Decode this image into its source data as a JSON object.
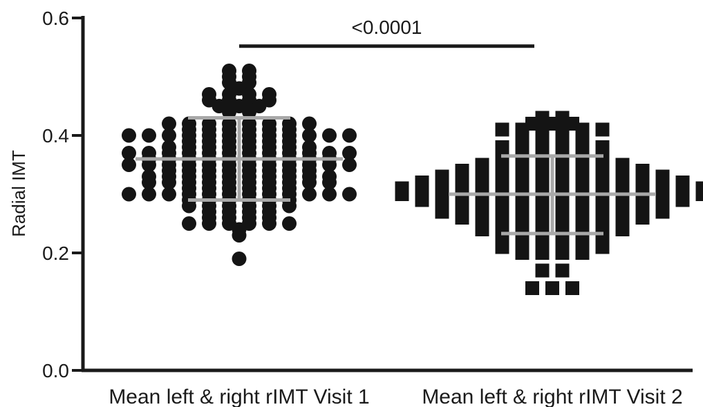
{
  "chart_data": {
    "type": "scatter",
    "subtype": "dot-plot",
    "title": "",
    "xlabel": "",
    "ylabel": "Radial IMT",
    "ylim": [
      0.0,
      0.6
    ],
    "yticks": [
      "0.0",
      "0.2",
      "0.4",
      "0.6"
    ],
    "grid": false,
    "legend": "none",
    "colors": {
      "points": "#141414",
      "summary": "#a8a8a8",
      "axis": "#1a1a1a"
    },
    "categories": [
      "Mean left & right rIMT Visit 1",
      "Mean left & right rIMT Visit 2"
    ],
    "significance": {
      "label": "<0.0001",
      "y": 0.552
    },
    "series": [
      {
        "category": "Mean left & right rIMT Visit 1",
        "marker": "circle",
        "mean": 0.36,
        "sd_low": 0.29,
        "sd_high": 0.43,
        "values": [
          0.51,
          0.51,
          0.5,
          0.5,
          0.49,
          0.49,
          0.48,
          0.47,
          0.47,
          0.47,
          0.47,
          0.46,
          0.46,
          0.46,
          0.46,
          0.45,
          0.45,
          0.45,
          0.44,
          0.44,
          0.42,
          0.42,
          0.42,
          0.42,
          0.42,
          0.42,
          0.42,
          0.42,
          0.41,
          0.41,
          0.41,
          0.41,
          0.41,
          0.41,
          0.4,
          0.4,
          0.4,
          0.4,
          0.4,
          0.4,
          0.4,
          0.4,
          0.4,
          0.4,
          0.4,
          0.4,
          0.39,
          0.39,
          0.39,
          0.39,
          0.39,
          0.39,
          0.38,
          0.38,
          0.38,
          0.38,
          0.38,
          0.38,
          0.38,
          0.38,
          0.37,
          0.37,
          0.37,
          0.37,
          0.37,
          0.37,
          0.37,
          0.37,
          0.37,
          0.37,
          0.37,
          0.37,
          0.36,
          0.36,
          0.36,
          0.36,
          0.36,
          0.36,
          0.36,
          0.36,
          0.36,
          0.36,
          0.35,
          0.35,
          0.35,
          0.35,
          0.35,
          0.35,
          0.35,
          0.35,
          0.35,
          0.35,
          0.35,
          0.35,
          0.34,
          0.34,
          0.34,
          0.34,
          0.34,
          0.34,
          0.34,
          0.34,
          0.33,
          0.33,
          0.33,
          0.33,
          0.33,
          0.33,
          0.33,
          0.33,
          0.33,
          0.33,
          0.32,
          0.32,
          0.32,
          0.32,
          0.32,
          0.32,
          0.32,
          0.32,
          0.32,
          0.32,
          0.31,
          0.31,
          0.31,
          0.31,
          0.31,
          0.31,
          0.3,
          0.3,
          0.3,
          0.3,
          0.3,
          0.3,
          0.3,
          0.3,
          0.3,
          0.3,
          0.3,
          0.3,
          0.29,
          0.29,
          0.29,
          0.29,
          0.29,
          0.29,
          0.28,
          0.28,
          0.28,
          0.28,
          0.28,
          0.28,
          0.27,
          0.27,
          0.27,
          0.27,
          0.26,
          0.26,
          0.26,
          0.26,
          0.25,
          0.25,
          0.25,
          0.25,
          0.25,
          0.25,
          0.24,
          0.23,
          0.19
        ]
      },
      {
        "category": "Mean left & right rIMT Visit 2",
        "marker": "square",
        "mean": 0.3,
        "sd_low": 0.233,
        "sd_high": 0.365,
        "values": [
          0.43,
          0.43,
          0.42,
          0.42,
          0.42,
          0.41,
          0.41,
          0.41,
          0.41,
          0.41,
          0.41,
          0.4,
          0.4,
          0.39,
          0.39,
          0.39,
          0.39,
          0.38,
          0.38,
          0.38,
          0.38,
          0.38,
          0.38,
          0.37,
          0.37,
          0.37,
          0.37,
          0.36,
          0.36,
          0.36,
          0.36,
          0.36,
          0.36,
          0.35,
          0.35,
          0.35,
          0.35,
          0.35,
          0.35,
          0.35,
          0.35,
          0.34,
          0.34,
          0.34,
          0.34,
          0.34,
          0.34,
          0.34,
          0.34,
          0.34,
          0.34,
          0.33,
          0.33,
          0.33,
          0.33,
          0.33,
          0.33,
          0.33,
          0.33,
          0.33,
          0.33,
          0.33,
          0.33,
          0.32,
          0.32,
          0.32,
          0.32,
          0.32,
          0.32,
          0.32,
          0.32,
          0.32,
          0.32,
          0.32,
          0.32,
          0.32,
          0.32,
          0.31,
          0.31,
          0.31,
          0.31,
          0.31,
          0.31,
          0.31,
          0.31,
          0.31,
          0.31,
          0.31,
          0.31,
          0.31,
          0.31,
          0.31,
          0.31,
          0.3,
          0.3,
          0.3,
          0.3,
          0.3,
          0.3,
          0.3,
          0.3,
          0.3,
          0.3,
          0.3,
          0.3,
          0.3,
          0.3,
          0.3,
          0.3,
          0.29,
          0.29,
          0.29,
          0.29,
          0.29,
          0.29,
          0.29,
          0.29,
          0.29,
          0.29,
          0.29,
          0.29,
          0.29,
          0.29,
          0.28,
          0.28,
          0.28,
          0.28,
          0.28,
          0.28,
          0.28,
          0.28,
          0.28,
          0.28,
          0.28,
          0.28,
          0.27,
          0.27,
          0.27,
          0.27,
          0.27,
          0.27,
          0.27,
          0.27,
          0.27,
          0.27,
          0.27,
          0.27,
          0.26,
          0.26,
          0.26,
          0.26,
          0.26,
          0.26,
          0.26,
          0.26,
          0.26,
          0.26,
          0.25,
          0.25,
          0.25,
          0.25,
          0.25,
          0.25,
          0.25,
          0.25,
          0.24,
          0.24,
          0.24,
          0.24,
          0.24,
          0.24,
          0.24,
          0.24,
          0.23,
          0.23,
          0.23,
          0.23,
          0.22,
          0.22,
          0.22,
          0.22,
          0.22,
          0.22,
          0.21,
          0.21,
          0.21,
          0.21,
          0.21,
          0.21,
          0.2,
          0.2,
          0.2,
          0.2,
          0.17,
          0.17,
          0.14,
          0.14,
          0.14
        ]
      }
    ]
  }
}
